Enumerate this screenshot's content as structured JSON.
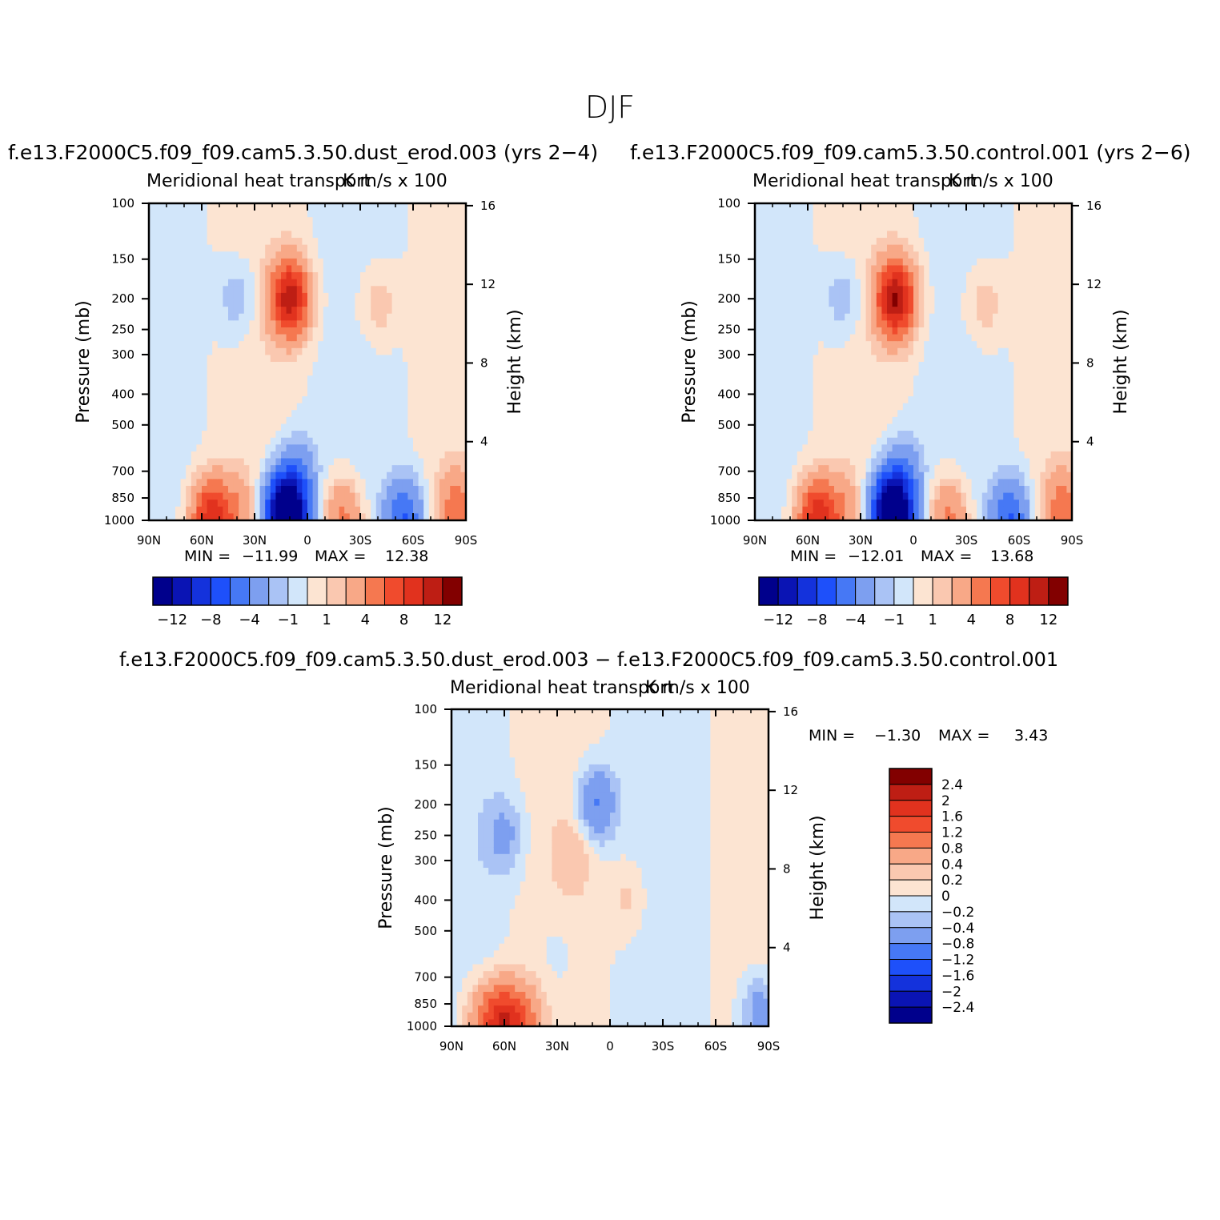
{
  "figure": {
    "title": "DJF"
  },
  "palette": {
    "colors": [
      "#00008c",
      "#0a14b4",
      "#1432dc",
      "#1e50fa",
      "#4678f5",
      "#7d9ff0",
      "#aac3f5",
      "#d2e6fa",
      "#fce4d2",
      "#fac8b0",
      "#f8a887",
      "#f57850",
      "#f04b2d",
      "#e1321e",
      "#be1e14",
      "#820000"
    ],
    "neutral": "#ffffff"
  },
  "chart_data": [
    {
      "type": "heatmap",
      "id": "panel-dust",
      "run_title": "f.e13.F2000C5.f09_f09.cam5.3.50.dust_erod.003 (yrs 2−4)",
      "field_title": "Meridional heat transport",
      "units_title": "K m/s x 100",
      "ylabel": "Pressure (mb)",
      "ylabel_right": "Height (km)",
      "x_ticks": [
        "90N",
        "60N",
        "30N",
        "0",
        "30S",
        "60S",
        "90S"
      ],
      "y_ticks": [
        "100",
        "150",
        "200",
        "250",
        "300",
        "400",
        "500",
        "700",
        "850",
        "1000"
      ],
      "y_ticks_right": [
        "16",
        "12",
        "8",
        "4"
      ],
      "xlim": [
        "90N",
        "90S"
      ],
      "ylim": [
        1000,
        100
      ],
      "y_scale": "log",
      "min_label": "MIN =",
      "min_value": "−11.99",
      "max_label": "MAX =",
      "max_value": "12.38",
      "colorbar_labels": [
        "−12",
        "−8",
        "−4",
        "−1",
        "1",
        "4",
        "8",
        "12"
      ],
      "features": [
        {
          "lat": 10,
          "p": 980,
          "value": -12
        },
        {
          "lat": 15,
          "p": 920,
          "value": -7
        },
        {
          "lat": 5,
          "p": 700,
          "value": -3
        },
        {
          "lat": 55,
          "p": 980,
          "value": 9
        },
        {
          "lat": 40,
          "p": 950,
          "value": 3
        },
        {
          "lat": -20,
          "p": 980,
          "value": 5
        },
        {
          "lat": -55,
          "p": 980,
          "value": -6
        },
        {
          "lat": -85,
          "p": 930,
          "value": 5
        },
        {
          "lat": 10,
          "p": 200,
          "value": 11
        },
        {
          "lat": 40,
          "p": 200,
          "value": -2
        },
        {
          "lat": -40,
          "p": 210,
          "value": 2
        }
      ]
    },
    {
      "type": "heatmap",
      "id": "panel-control",
      "run_title": "f.e13.F2000C5.f09_f09.cam5.3.50.control.001 (yrs 2−6)",
      "field_title": "Meridional heat transport",
      "units_title": "K m/s x 100",
      "ylabel": "Pressure (mb)",
      "ylabel_right": "Height (km)",
      "x_ticks": [
        "90N",
        "60N",
        "30N",
        "0",
        "30S",
        "60S",
        "90S"
      ],
      "y_ticks": [
        "100",
        "150",
        "200",
        "250",
        "300",
        "400",
        "500",
        "700",
        "850",
        "1000"
      ],
      "y_ticks_right": [
        "16",
        "12",
        "8",
        "4"
      ],
      "xlim": [
        "90N",
        "90S"
      ],
      "ylim": [
        1000,
        100
      ],
      "y_scale": "log",
      "min_label": "MIN =",
      "min_value": "−12.01",
      "max_label": "MAX =",
      "max_value": "13.68",
      "colorbar_labels": [
        "−12",
        "−8",
        "−4",
        "−1",
        "1",
        "4",
        "8",
        "12"
      ],
      "features": [
        {
          "lat": 10,
          "p": 980,
          "value": -12
        },
        {
          "lat": 15,
          "p": 920,
          "value": -7
        },
        {
          "lat": 5,
          "p": 700,
          "value": -3
        },
        {
          "lat": 55,
          "p": 980,
          "value": 9
        },
        {
          "lat": 40,
          "p": 950,
          "value": 3
        },
        {
          "lat": -20,
          "p": 980,
          "value": 5
        },
        {
          "lat": -55,
          "p": 980,
          "value": -6
        },
        {
          "lat": -85,
          "p": 930,
          "value": 5
        },
        {
          "lat": 10,
          "p": 200,
          "value": 12
        },
        {
          "lat": 40,
          "p": 200,
          "value": -2
        },
        {
          "lat": -40,
          "p": 210,
          "value": 2
        }
      ]
    },
    {
      "type": "heatmap",
      "id": "panel-diff",
      "run_title": "f.e13.F2000C5.f09_f09.cam5.3.50.dust_erod.003 − f.e13.F2000C5.f09_f09.cam5.3.50.control.001",
      "field_title": "Meridional heat transport",
      "units_title": "K m/s x 100",
      "ylabel": "Pressure (mb)",
      "ylabel_right": "Height (km)",
      "x_ticks": [
        "90N",
        "60N",
        "30N",
        "0",
        "30S",
        "60S",
        "90S"
      ],
      "y_ticks": [
        "100",
        "150",
        "200",
        "250",
        "300",
        "400",
        "500",
        "700",
        "850",
        "1000"
      ],
      "y_ticks_right": [
        "16",
        "12",
        "8",
        "4"
      ],
      "xlim": [
        "90N",
        "90S"
      ],
      "ylim": [
        1000,
        100
      ],
      "y_scale": "log",
      "min_label": "MIN =",
      "min_value": "−1.30",
      "max_label": "MAX =",
      "max_value": "3.43",
      "colorbar_labels": [
        "2.4",
        "2",
        "1.6",
        "1.2",
        "0.8",
        "0.4",
        "0.2",
        "0",
        "−0.2",
        "−0.4",
        "−0.8",
        "−1.2",
        "−1.6",
        "−2",
        "−2.4"
      ],
      "features": [
        {
          "lat": 62,
          "p": 970,
          "value": 1.7
        },
        {
          "lat": 50,
          "p": 980,
          "value": 0.9
        },
        {
          "lat": 75,
          "p": 930,
          "value": 0.5
        },
        {
          "lat": 8,
          "p": 200,
          "value": -0.9
        },
        {
          "lat": 20,
          "p": 280,
          "value": 0.3
        },
        {
          "lat": 60,
          "p": 250,
          "value": -0.5
        },
        {
          "lat": -85,
          "p": 900,
          "value": -0.7
        },
        {
          "lat": -10,
          "p": 400,
          "value": 0.3
        },
        {
          "lat": 30,
          "p": 600,
          "value": -0.2
        }
      ]
    }
  ]
}
